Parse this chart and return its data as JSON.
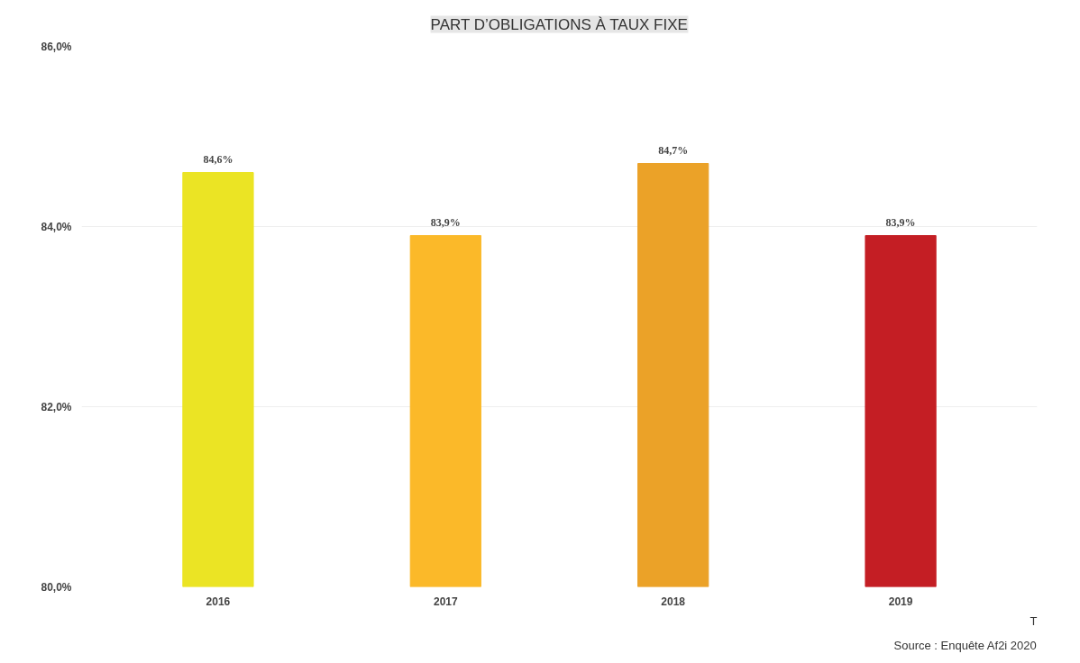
{
  "chart_data": {
    "type": "bar",
    "title": "PART D’OBLIGATIONS À TAUX FIXE",
    "categories": [
      "2016",
      "2017",
      "2018",
      "2019"
    ],
    "values": [
      84.6,
      83.9,
      84.7,
      83.9
    ],
    "colors": [
      "#ebe424",
      "#fbb929",
      "#eba228",
      "#c41e24"
    ],
    "value_labels": [
      "84,6%",
      "83,9%",
      "84,7%",
      "83,9%"
    ],
    "ylim": [
      80,
      86
    ],
    "yticks": [
      {
        "value": 80,
        "label": "80,0%"
      },
      {
        "value": 82,
        "label": "82,0%"
      },
      {
        "value": 84,
        "label": "84,0%"
      },
      {
        "value": 86,
        "label": "86,0%"
      }
    ],
    "grid": "y",
    "annotations": [
      "Source : Enquête Af2i 2020",
      "T"
    ]
  }
}
